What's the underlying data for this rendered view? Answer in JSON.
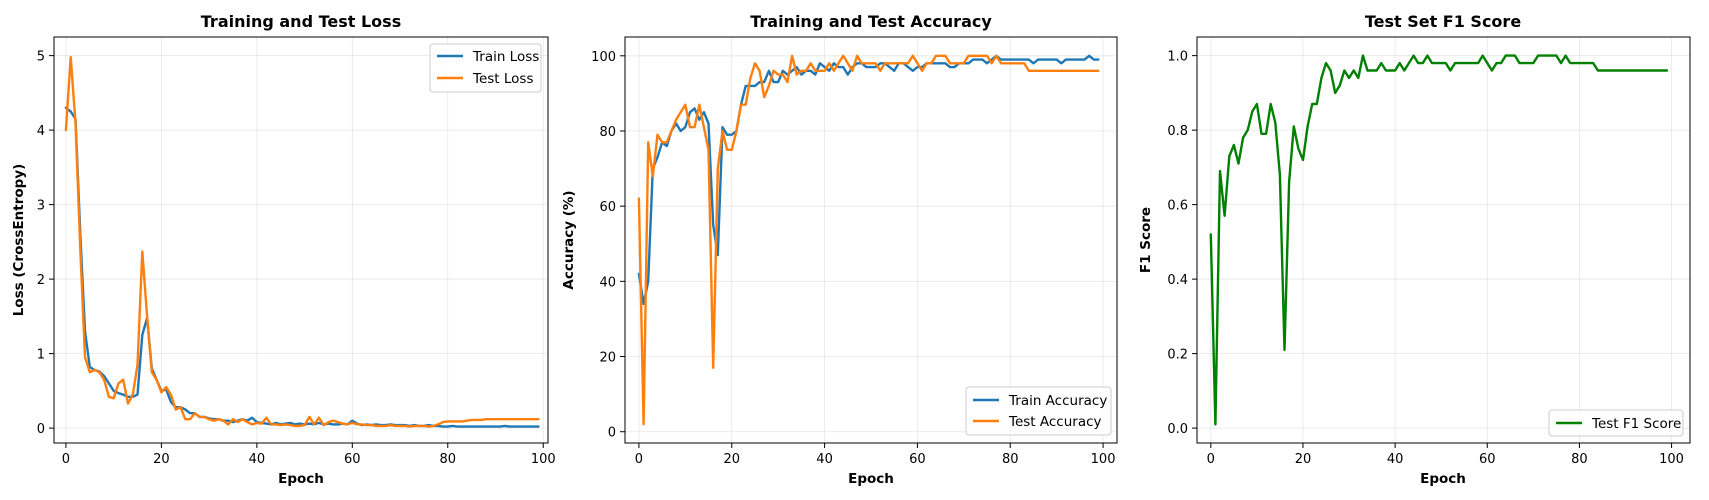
{
  "colors": {
    "blue": "#1f77b4",
    "orange": "#ff7f0e",
    "green": "#008000"
  },
  "chart_data": [
    {
      "type": "line",
      "title": "Training and Test Loss",
      "xlabel": "Epoch",
      "ylabel": "Loss (CrossEntropy)",
      "xlim": [
        -2.5,
        101
      ],
      "ylim": [
        -0.2,
        5.25
      ],
      "xticks": [
        0,
        20,
        40,
        60,
        80,
        100
      ],
      "yticks": [
        0,
        1,
        2,
        3,
        4,
        5
      ],
      "grid": true,
      "legend_position": "top-right",
      "series": [
        {
          "name": "Train Loss",
          "color": "#1f77b4",
          "values": [
            4.3,
            4.25,
            4.15,
            2.6,
            1.3,
            0.82,
            0.78,
            0.76,
            0.7,
            0.6,
            0.5,
            0.47,
            0.45,
            0.42,
            0.42,
            0.45,
            1.25,
            1.48,
            0.8,
            0.65,
            0.5,
            0.52,
            0.35,
            0.28,
            0.28,
            0.25,
            0.2,
            0.2,
            0.15,
            0.15,
            0.13,
            0.12,
            0.12,
            0.1,
            0.1,
            0.08,
            0.1,
            0.12,
            0.1,
            0.14,
            0.08,
            0.07,
            0.06,
            0.05,
            0.07,
            0.05,
            0.06,
            0.07,
            0.05,
            0.06,
            0.05,
            0.06,
            0.05,
            0.07,
            0.05,
            0.06,
            0.05,
            0.05,
            0.06,
            0.05,
            0.1,
            0.06,
            0.04,
            0.05,
            0.04,
            0.05,
            0.04,
            0.04,
            0.05,
            0.04,
            0.04,
            0.04,
            0.03,
            0.04,
            0.03,
            0.03,
            0.04,
            0.03,
            0.03,
            0.02,
            0.02,
            0.03,
            0.02,
            0.02,
            0.02,
            0.02,
            0.02,
            0.02,
            0.02,
            0.02,
            0.02,
            0.02,
            0.03,
            0.02,
            0.02,
            0.02,
            0.02,
            0.02,
            0.02,
            0.02
          ]
        },
        {
          "name": "Test Loss",
          "color": "#ff7f0e",
          "values": [
            4.0,
            4.98,
            4.1,
            2.4,
            0.95,
            0.75,
            0.78,
            0.75,
            0.65,
            0.42,
            0.4,
            0.6,
            0.65,
            0.33,
            0.45,
            0.85,
            2.37,
            1.5,
            0.75,
            0.65,
            0.48,
            0.55,
            0.45,
            0.25,
            0.28,
            0.12,
            0.12,
            0.2,
            0.15,
            0.15,
            0.12,
            0.1,
            0.12,
            0.1,
            0.05,
            0.12,
            0.08,
            0.12,
            0.08,
            0.05,
            0.07,
            0.06,
            0.14,
            0.05,
            0.05,
            0.04,
            0.05,
            0.04,
            0.03,
            0.03,
            0.04,
            0.15,
            0.05,
            0.14,
            0.04,
            0.08,
            0.1,
            0.08,
            0.06,
            0.05,
            0.07,
            0.05,
            0.05,
            0.04,
            0.04,
            0.03,
            0.03,
            0.03,
            0.04,
            0.03,
            0.03,
            0.03,
            0.02,
            0.03,
            0.03,
            0.03,
            0.02,
            0.03,
            0.05,
            0.08,
            0.09,
            0.09,
            0.09,
            0.09,
            0.1,
            0.11,
            0.11,
            0.11,
            0.12,
            0.12,
            0.12,
            0.12,
            0.12,
            0.12,
            0.12,
            0.12,
            0.12,
            0.12,
            0.12,
            0.12
          ]
        }
      ]
    },
    {
      "type": "line",
      "title": "Training and Test Accuracy",
      "xlabel": "Epoch",
      "ylabel": "Accuracy (%)",
      "xlim": [
        -3,
        103
      ],
      "ylim": [
        -3,
        105
      ],
      "xticks": [
        0,
        20,
        40,
        60,
        80,
        100
      ],
      "yticks": [
        0,
        20,
        40,
        60,
        80,
        100
      ],
      "grid": true,
      "legend_position": "bottom-right",
      "series": [
        {
          "name": "Train Accuracy",
          "color": "#1f77b4",
          "values": [
            42,
            34,
            40,
            70,
            73,
            77,
            76,
            80,
            82,
            80,
            81,
            85,
            86,
            83,
            85,
            82,
            55,
            47,
            81,
            79,
            79,
            80,
            87,
            92,
            92,
            92,
            93,
            93,
            96,
            93,
            93,
            96,
            95,
            96,
            97,
            95,
            96,
            96,
            95,
            98,
            97,
            96,
            98,
            97,
            97,
            95,
            97,
            98,
            98,
            97,
            97,
            97,
            98,
            98,
            97,
            96,
            98,
            98,
            97,
            96,
            97,
            97,
            98,
            98,
            98,
            98,
            98,
            97,
            97,
            98,
            98,
            98,
            99,
            99,
            99,
            98,
            99,
            100,
            99,
            99,
            99,
            99,
            99,
            99,
            99,
            98,
            99,
            99,
            99,
            99,
            99,
            98,
            99,
            99,
            99,
            99,
            99,
            100,
            99,
            99
          ]
        },
        {
          "name": "Test Accuracy",
          "color": "#ff7f0e",
          "values": [
            62,
            2,
            77,
            68,
            79,
            77,
            77,
            80,
            83,
            85,
            87,
            81,
            81,
            87,
            81,
            75,
            17,
            70,
            80,
            75,
            75,
            80,
            87,
            87,
            94,
            98,
            96,
            89,
            92,
            96,
            95,
            95,
            93,
            100,
            95,
            96,
            96,
            98,
            96,
            96,
            96,
            98,
            96,
            98,
            100,
            98,
            96,
            100,
            98,
            98,
            98,
            98,
            96,
            98,
            98,
            98,
            98,
            98,
            98,
            100,
            98,
            96,
            98,
            98,
            100,
            100,
            100,
            98,
            98,
            98,
            98,
            100,
            100,
            100,
            100,
            100,
            98,
            100,
            98,
            98,
            98,
            98,
            98,
            98,
            96,
            96,
            96,
            96,
            96,
            96,
            96,
            96,
            96,
            96,
            96,
            96,
            96,
            96,
            96,
            96
          ]
        }
      ]
    },
    {
      "type": "line",
      "title": "Test Set F1 Score",
      "xlabel": "Epoch",
      "ylabel": "F1 Score",
      "xlim": [
        -3,
        104
      ],
      "ylim": [
        -0.04,
        1.05
      ],
      "xticks": [
        0,
        20,
        40,
        60,
        80,
        100
      ],
      "yticks": [
        0.0,
        0.2,
        0.4,
        0.6,
        0.8,
        1.0
      ],
      "grid": true,
      "legend_position": "bottom-right",
      "series": [
        {
          "name": "Test F1 Score",
          "color": "#008000",
          "values": [
            0.52,
            0.01,
            0.69,
            0.57,
            0.73,
            0.76,
            0.71,
            0.78,
            0.8,
            0.85,
            0.87,
            0.79,
            0.79,
            0.87,
            0.82,
            0.68,
            0.21,
            0.66,
            0.81,
            0.75,
            0.72,
            0.81,
            0.87,
            0.87,
            0.94,
            0.98,
            0.96,
            0.9,
            0.92,
            0.96,
            0.94,
            0.96,
            0.94,
            1.0,
            0.96,
            0.96,
            0.96,
            0.98,
            0.96,
            0.96,
            0.96,
            0.98,
            0.96,
            0.98,
            1.0,
            0.98,
            0.98,
            1.0,
            0.98,
            0.98,
            0.98,
            0.98,
            0.96,
            0.98,
            0.98,
            0.98,
            0.98,
            0.98,
            0.98,
            1.0,
            0.98,
            0.96,
            0.98,
            0.98,
            1.0,
            1.0,
            1.0,
            0.98,
            0.98,
            0.98,
            0.98,
            1.0,
            1.0,
            1.0,
            1.0,
            1.0,
            0.98,
            1.0,
            0.98,
            0.98,
            0.98,
            0.98,
            0.98,
            0.98,
            0.96,
            0.96,
            0.96,
            0.96,
            0.96,
            0.96,
            0.96,
            0.96,
            0.96,
            0.96,
            0.96,
            0.96,
            0.96,
            0.96,
            0.96,
            0.96
          ]
        }
      ]
    }
  ]
}
